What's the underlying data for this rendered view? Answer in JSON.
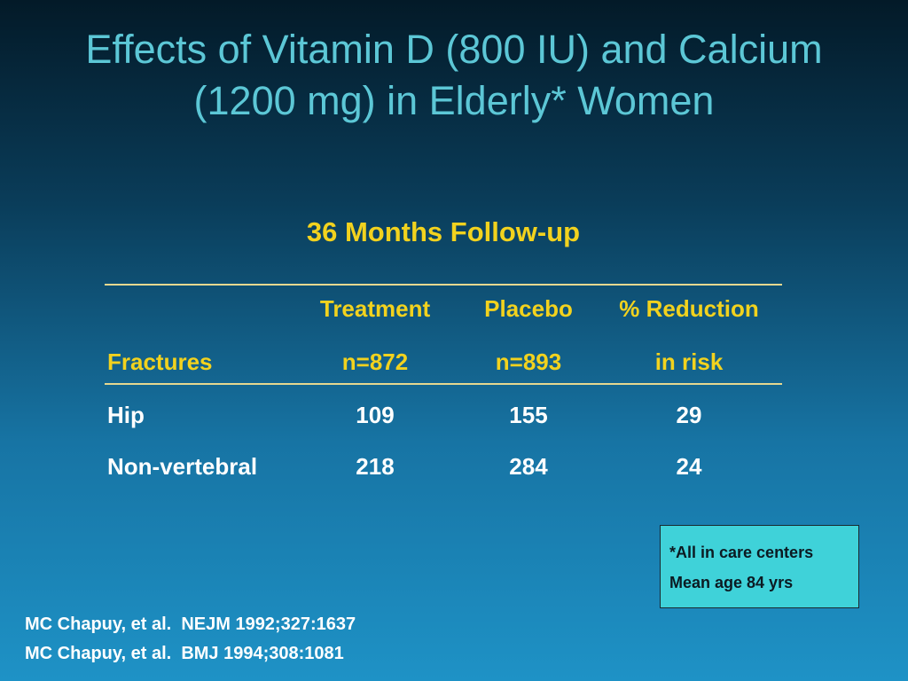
{
  "title": [
    "Effects of Vitamin D (800 IU) and Calcium",
    "(1200 mg) in Elderly* Women"
  ],
  "subtitle": "36 Months Follow-up",
  "table": {
    "header": [
      [
        "Fractures"
      ],
      [
        "Treatment",
        "n=872"
      ],
      [
        "Placebo",
        "n=893"
      ],
      [
        "% Reduction",
        "in risk"
      ]
    ],
    "rows": [
      [
        "Hip",
        109,
        155,
        29
      ],
      [
        "Non-vertebral",
        218,
        284,
        24
      ]
    ]
  },
  "note": [
    "*All in care centers",
    "Mean age 84 yrs"
  ],
  "references": [
    "MC Chapuy, et al.  NEJM 1992;327:1637",
    "MC Chapuy, et al.  BMJ 1994;308:1081"
  ]
}
